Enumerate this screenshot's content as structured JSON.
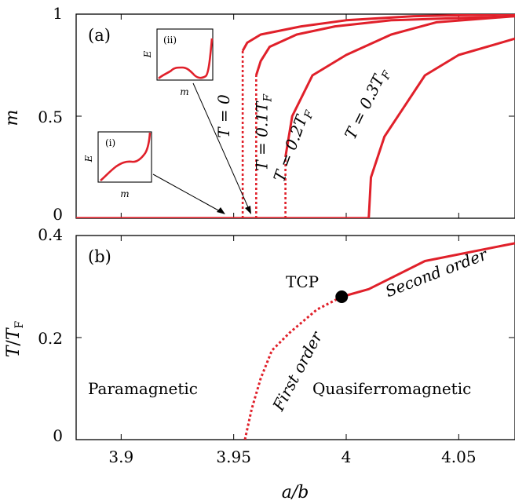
{
  "chart_data": [
    {
      "type": "line",
      "panel_label": "(a)",
      "ylabel": "m",
      "xlabel": "",
      "xlim": [
        3.88,
        4.075
      ],
      "ylim": [
        0,
        1
      ],
      "y_ticks": [
        0,
        0.5,
        1
      ],
      "y_tick_labels": [
        "0",
        "0.5",
        "1"
      ],
      "x_ticks": [
        3.9,
        3.95,
        4.0,
        4.05
      ],
      "grid": false,
      "line_color": "#e0202a",
      "series": [
        {
          "name": "T = 0",
          "jump_a": 3.954,
          "jump_from": 0,
          "jump_to": 0.82,
          "points": [
            [
              3.954,
              0.82
            ],
            [
              3.956,
              0.86
            ],
            [
              3.962,
              0.9
            ],
            [
              3.98,
              0.94
            ],
            [
              4.0,
              0.97
            ],
            [
              4.03,
              0.99
            ],
            [
              4.075,
              1.0
            ]
          ]
        },
        {
          "name": "T = 0.1T_F",
          "jump_a": 3.96,
          "jump_from": 0,
          "jump_to": 0.7,
          "points": [
            [
              3.96,
              0.7
            ],
            [
              3.962,
              0.77
            ],
            [
              3.966,
              0.84
            ],
            [
              3.978,
              0.9
            ],
            [
              3.995,
              0.94
            ],
            [
              4.02,
              0.97
            ],
            [
              4.075,
              0.99
            ]
          ]
        },
        {
          "name": "T = 0.2T_F",
          "jump_a": 3.973,
          "jump_from": 0,
          "jump_to": 0.3,
          "points": [
            [
              3.973,
              0.3
            ],
            [
              3.976,
              0.5
            ],
            [
              3.985,
              0.7
            ],
            [
              4.0,
              0.8
            ],
            [
              4.02,
              0.9
            ],
            [
              4.04,
              0.96
            ],
            [
              4.075,
              0.99
            ]
          ]
        },
        {
          "name": "T = 0.3T_F",
          "jump_a": 4.01,
          "jump_from": 0,
          "jump_to": 0,
          "points": [
            [
              4.01,
              0.0
            ],
            [
              4.011,
              0.2
            ],
            [
              4.017,
              0.4
            ],
            [
              4.035,
              0.7
            ],
            [
              4.05,
              0.8
            ],
            [
              4.075,
              0.88
            ]
          ]
        }
      ],
      "labels": [
        {
          "text_main": "T = 0",
          "text_sub": "",
          "a": 3.948,
          "m": 0.5
        },
        {
          "text_main": "T = 0.1T",
          "text_sub": "F",
          "a": 3.965,
          "m": 0.42
        },
        {
          "text_main": "T = 0.2T",
          "text_sub": "F",
          "a": 3.978,
          "m": 0.35
        },
        {
          "text_main": "T = 0.3T",
          "text_sub": "F",
          "a": 4.011,
          "m": 0.55
        }
      ],
      "insets": [
        {
          "label": "(i)",
          "xlabel": "m",
          "ylabel": "E"
        },
        {
          "label": "(ii)",
          "xlabel": "m",
          "ylabel": "E"
        }
      ]
    },
    {
      "type": "line",
      "panel_label": "(b)",
      "ylabel": "T/T_F",
      "xlabel": "a/b",
      "xlim": [
        3.88,
        4.075
      ],
      "ylim": [
        0,
        0.4
      ],
      "y_ticks": [
        0,
        0.2,
        0.4
      ],
      "y_tick_labels": [
        "0",
        "0.2",
        "0.4"
      ],
      "x_ticks": [
        3.9,
        3.95,
        4.0,
        4.05
      ],
      "x_tick_labels": [
        "3.9",
        "3.95",
        "4",
        "4.05"
      ],
      "grid": false,
      "first_order": {
        "name": "First order",
        "points": [
          [
            3.955,
            0.0
          ],
          [
            3.958,
            0.06
          ],
          [
            3.962,
            0.12
          ],
          [
            3.967,
            0.175
          ],
          [
            3.975,
            0.21
          ],
          [
            3.987,
            0.255
          ],
          [
            3.998,
            0.28
          ]
        ]
      },
      "second_order": {
        "name": "Second order",
        "points": [
          [
            3.998,
            0.28
          ],
          [
            4.01,
            0.295
          ],
          [
            4.035,
            0.35
          ],
          [
            4.075,
            0.385
          ]
        ]
      },
      "tcp": {
        "label": "TCP",
        "a": 3.998,
        "T": 0.28
      },
      "regions": [
        "Paramagnetic",
        "Quasiferromagnetic"
      ]
    }
  ]
}
